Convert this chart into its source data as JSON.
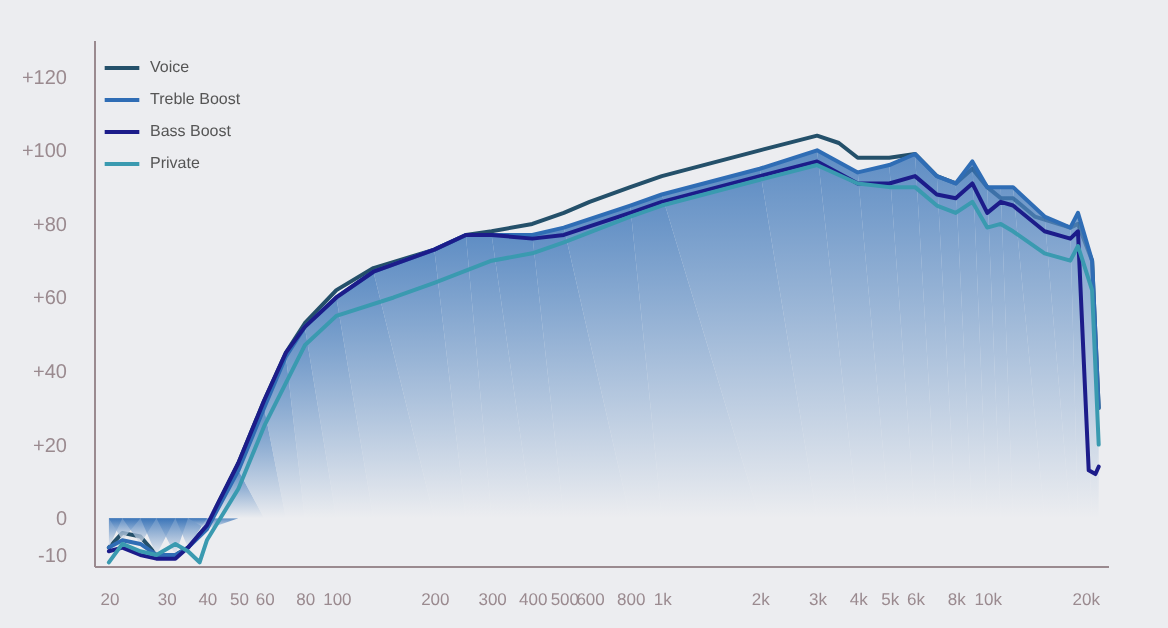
{
  "chart_data": {
    "type": "line",
    "legend": "top left",
    "grid": false,
    "marker": "none",
    "line_style": "solid",
    "log": "x",
    "xlim": [
      18,
      23500
    ],
    "ylim": [
      -13,
      130
    ],
    "xticks": [
      20,
      30,
      40,
      50,
      60,
      80,
      100,
      200,
      300,
      400,
      500,
      600,
      800,
      {
        "value": 1000,
        "label": "1k"
      },
      {
        "value": 2000,
        "label": "2k"
      },
      {
        "value": 3000,
        "label": "3k"
      },
      {
        "value": 4000,
        "label": "4k"
      },
      {
        "value": 5000,
        "label": "5k"
      },
      {
        "value": 6000,
        "label": "6k"
      },
      {
        "value": 8000,
        "label": "8k"
      },
      {
        "value": 10000,
        "label": "10k"
      },
      {
        "value": 20000,
        "label": "20k"
      }
    ],
    "yticks": [
      -10,
      0,
      {
        "value": 20,
        "label": "+20"
      },
      {
        "value": 40,
        "label": "+40"
      },
      {
        "value": 60,
        "label": "+60"
      },
      {
        "value": 80,
        "label": "+80"
      },
      {
        "value": 100,
        "label": "+100"
      },
      {
        "value": 120,
        "label": "+120"
      }
    ],
    "series": [
      {
        "name": "Voice",
        "color": "#24506a",
        "x": [
          20,
          22,
          25,
          28,
          32,
          35,
          40,
          50,
          60,
          70,
          80,
          100,
          130,
          200,
          250,
          300,
          400,
          500,
          600,
          800,
          1000,
          2000,
          3000,
          3500,
          4000,
          5000,
          6000,
          7000,
          8000,
          9000,
          10000,
          11000,
          12000,
          14000,
          18000,
          19000,
          21000,
          22000
        ],
        "values": [
          -8,
          -4,
          -5,
          -10,
          -10,
          -8,
          -2,
          15,
          32,
          45,
          53,
          62,
          68,
          73,
          77,
          78,
          80,
          83,
          86,
          90,
          93,
          100,
          104,
          102,
          98,
          98,
          99,
          93,
          91,
          95,
          90,
          87,
          87,
          82,
          79,
          80,
          70,
          30
        ]
      },
      {
        "name": "Treble Boost",
        "type": "area",
        "color": "#2f6db5",
        "x": [
          20,
          22,
          25,
          28,
          32,
          35,
          40,
          50,
          60,
          70,
          80,
          100,
          130,
          200,
          250,
          300,
          400,
          500,
          800,
          1000,
          2000,
          3000,
          4000,
          5000,
          6000,
          7000,
          8000,
          9000,
          10000,
          11000,
          12000,
          15000,
          18000,
          19000,
          21000,
          22000
        ],
        "values": [
          -8,
          -6,
          -7,
          -10,
          -10,
          -8,
          -3,
          13,
          30,
          44,
          52,
          60,
          67,
          73,
          77,
          77,
          77,
          79,
          85,
          88,
          95,
          100,
          94,
          96,
          99,
          93,
          91,
          97,
          90,
          90,
          90,
          82,
          79,
          83,
          70,
          30
        ]
      },
      {
        "name": "Bass Boost",
        "color": "#1c1c8a",
        "x": [
          20,
          22,
          25,
          28,
          32,
          35,
          40,
          50,
          60,
          70,
          80,
          100,
          130,
          200,
          250,
          300,
          400,
          500,
          800,
          1000,
          2000,
          3000,
          4000,
          5000,
          6000,
          7000,
          8000,
          9000,
          10000,
          11000,
          12000,
          15000,
          18000,
          19000,
          20500,
          21500,
          22000
        ],
        "values": [
          -9,
          -8,
          -10,
          -11,
          -11,
          -8,
          -2,
          15,
          32,
          45,
          52,
          60,
          67,
          73,
          77,
          77,
          76,
          77,
          83,
          86,
          93,
          97,
          91,
          91,
          93,
          88,
          87,
          91,
          83,
          86,
          85,
          78,
          76,
          78,
          13,
          12,
          14
        ]
      },
      {
        "name": "Private",
        "color": "#3a9ab0",
        "x": [
          20,
          22,
          25,
          28,
          32,
          35,
          38,
          40,
          50,
          60,
          80,
          100,
          150,
          200,
          300,
          400,
          500,
          800,
          1000,
          2000,
          3000,
          4000,
          5000,
          6000,
          7000,
          8000,
          9000,
          10000,
          11000,
          12000,
          15000,
          18000,
          19000,
          21000,
          22000
        ],
        "values": [
          -12,
          -7,
          -9,
          -10,
          -7,
          -9,
          -12,
          -6,
          8,
          25,
          47,
          55,
          60,
          64,
          70,
          72,
          75,
          82,
          85,
          92,
          96,
          91,
          90,
          90,
          85,
          83,
          86,
          79,
          80,
          78,
          72,
          70,
          74,
          62,
          20
        ]
      }
    ]
  }
}
